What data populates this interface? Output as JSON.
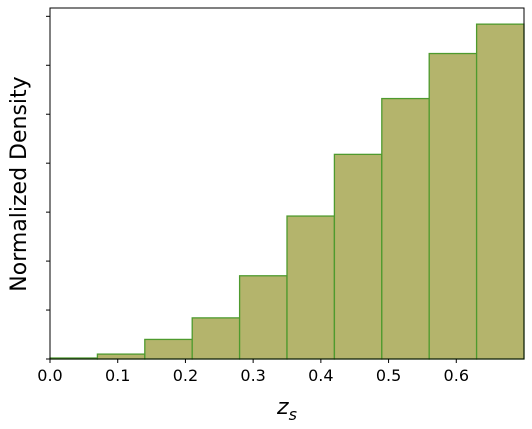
{
  "chart_data": {
    "type": "histogram",
    "bins": [
      0,
      0.07,
      0.14,
      0.21,
      0.28,
      0.35,
      0.42,
      0.49,
      0.56,
      0.63,
      0.7
    ],
    "values": [
      0.01,
      0.05,
      0.2,
      0.42,
      0.85,
      1.46,
      2.09,
      2.66,
      3.12,
      3.42
    ],
    "color": "#b4b46c",
    "edgecolor": "#4e9a2e",
    "xlim": [
      0,
      0.7
    ],
    "xticks": [
      {
        "value": 0,
        "label": "0.0"
      },
      0.1,
      0.2,
      0.3,
      0.4,
      0.5,
      0.6
    ],
    "ylim": [
      0,
      3.585
    ],
    "yticks": [
      0,
      0.5,
      1,
      1.5,
      2,
      2.5,
      3,
      3.5
    ],
    "x_label": {
      "base": "z",
      "sub": "s"
    },
    "y_label": "Normalized Density"
  }
}
